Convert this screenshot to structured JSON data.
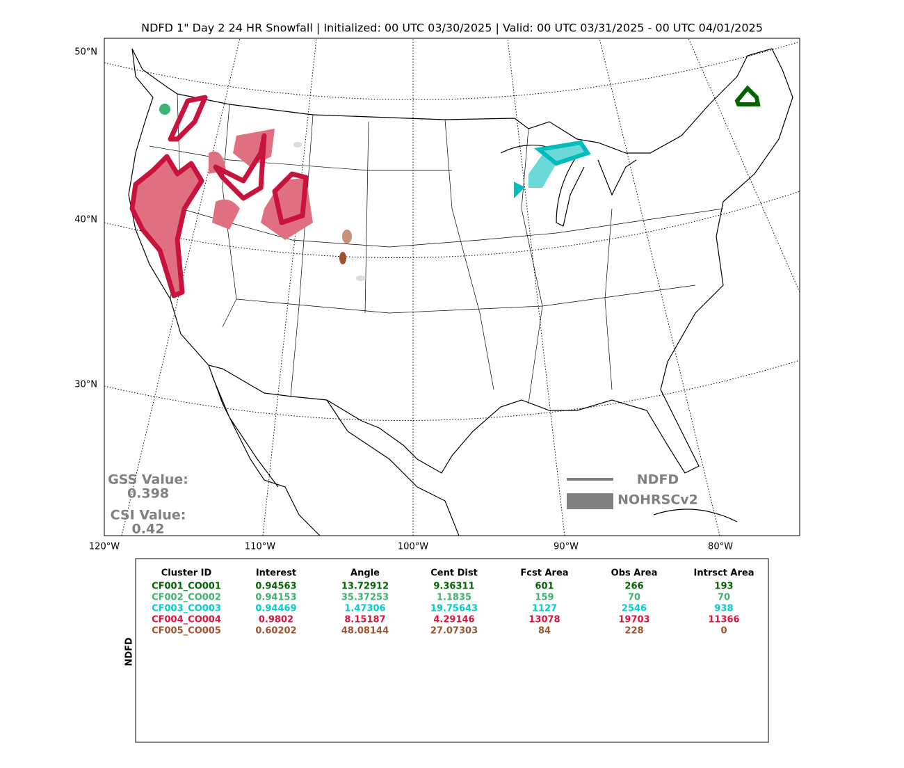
{
  "title": "NDFD 1\" Day 2 24 HR Snowfall | Initialized: 00 UTC 03/30/2025 | Valid: 00 UTC 03/31/2025 - 00 UTC 04/01/2025",
  "map": {
    "lat_labels": [
      "50°N",
      "40°N",
      "30°N"
    ],
    "lon_labels": [
      "120°W",
      "110°W",
      "100°W",
      "90°W",
      "80°W"
    ]
  },
  "scores": {
    "gss_label": "GSS Value:",
    "gss_value": 0.398,
    "csi_label": "CSI Value:",
    "csi_value": 0.42
  },
  "legend": {
    "line": "NDFD",
    "area": "NOHRSCv2"
  },
  "table": {
    "side_label": "NDFD",
    "header": [
      "Cluster ID",
      "Interest",
      "Angle",
      "Cent Dist",
      "Fcst Area",
      "Obs Area",
      "Intrsct Area"
    ],
    "row_colors": [
      "#006400",
      "#3cb371",
      "#00ced1",
      "#dc143c",
      "#a0522d"
    ],
    "rows": [
      [
        "CF001_CO001",
        0.94563,
        13.72912,
        9.36311,
        601,
        266,
        193
      ],
      [
        "CF002_CO002",
        0.94153,
        35.37253,
        1.1835,
        159,
        70,
        70
      ],
      [
        "CF003_CO003",
        0.94469,
        1.47306,
        19.75643,
        1127,
        2546,
        938
      ],
      [
        "CF004_CO004",
        0.9802,
        8.15187,
        4.29146,
        13078,
        19703,
        11366
      ],
      [
        "CF005_CO005",
        0.60202,
        48.08144,
        27.07303,
        84,
        228,
        0
      ]
    ]
  }
}
